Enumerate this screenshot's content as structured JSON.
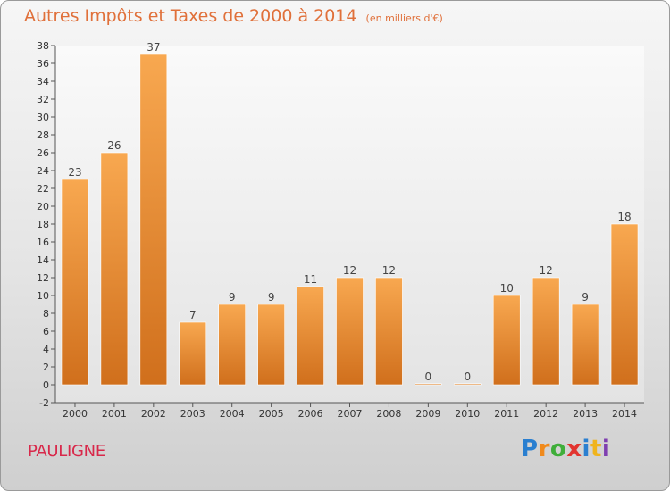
{
  "header": {
    "title": "Autres Impôts et Taxes de 2000 à 2014",
    "unit": "(en milliers d'€)"
  },
  "footer": {
    "town": "PAULIGNE",
    "logo": "Proxiti"
  },
  "colors": {
    "bar_light": "#f8a850",
    "bar_dark": "#d06f1c",
    "title": "#e0703a",
    "town": "#d8284a"
  },
  "chart_data": {
    "type": "bar",
    "title": "Autres Impôts et Taxes de 2000 à 2014",
    "subtitle": "(en milliers d'€)",
    "xlabel": "",
    "ylabel": "",
    "categories": [
      "2000",
      "2001",
      "2002",
      "2003",
      "2004",
      "2005",
      "2006",
      "2007",
      "2008",
      "2009",
      "2010",
      "2011",
      "2012",
      "2013",
      "2014"
    ],
    "values": [
      23,
      26,
      37,
      7,
      9,
      9,
      11,
      12,
      12,
      0,
      0,
      10,
      12,
      9,
      18
    ],
    "ylim": [
      -2,
      38
    ],
    "yticks": [
      -2,
      0,
      2,
      4,
      6,
      8,
      10,
      12,
      14,
      16,
      18,
      20,
      22,
      24,
      26,
      28,
      30,
      32,
      34,
      36,
      38
    ],
    "grid": false,
    "legend": "none"
  }
}
